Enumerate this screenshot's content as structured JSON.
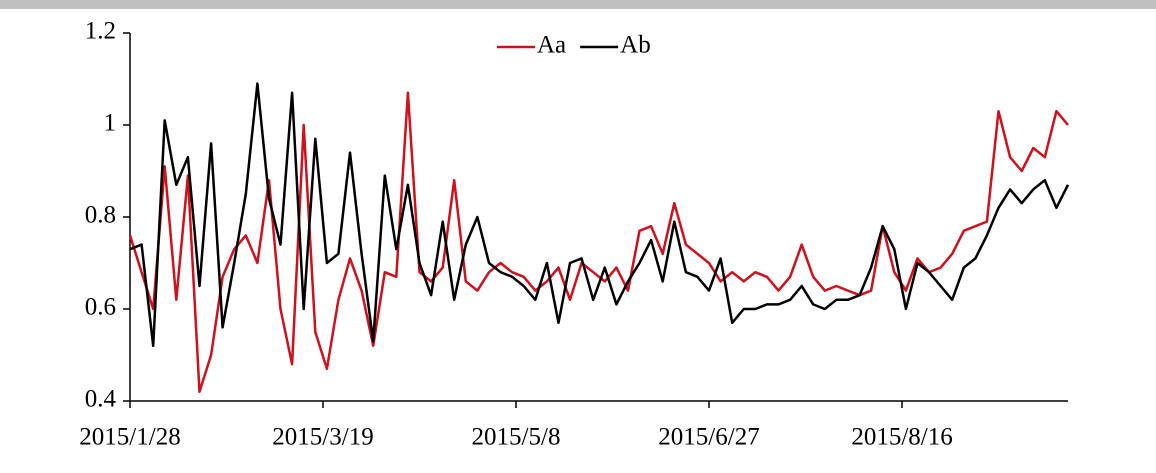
{
  "chart_data": {
    "type": "line",
    "x": [
      "2015/1/28",
      "2015/1/31",
      "2015/2/3",
      "2015/2/6",
      "2015/2/9",
      "2015/2/12",
      "2015/2/15",
      "2015/2/18",
      "2015/2/21",
      "2015/2/24",
      "2015/2/27",
      "2015/3/2",
      "2015/3/5",
      "2015/3/8",
      "2015/3/11",
      "2015/3/14",
      "2015/3/17",
      "2015/3/20",
      "2015/3/23",
      "2015/3/26",
      "2015/3/29",
      "2015/4/1",
      "2015/4/4",
      "2015/4/7",
      "2015/4/10",
      "2015/4/13",
      "2015/4/16",
      "2015/4/19",
      "2015/4/22",
      "2015/4/25",
      "2015/4/28",
      "2015/5/1",
      "2015/5/4",
      "2015/5/7",
      "2015/5/10",
      "2015/5/13",
      "2015/5/16",
      "2015/5/19",
      "2015/5/22",
      "2015/5/25",
      "2015/5/28",
      "2015/5/31",
      "2015/6/3",
      "2015/6/6",
      "2015/6/9",
      "2015/6/12",
      "2015/6/15",
      "2015/6/18",
      "2015/6/21",
      "2015/6/24",
      "2015/6/27",
      "2015/6/30",
      "2015/7/3",
      "2015/7/6",
      "2015/7/9",
      "2015/7/12",
      "2015/7/15",
      "2015/7/18",
      "2015/7/21",
      "2015/7/24",
      "2015/7/27",
      "2015/7/30",
      "2015/8/2",
      "2015/8/5",
      "2015/8/8",
      "2015/8/11",
      "2015/8/14",
      "2015/8/17",
      "2015/8/20",
      "2015/8/23",
      "2015/8/26",
      "2015/8/29",
      "2015/9/1",
      "2015/9/4",
      "2015/9/7",
      "2015/9/10",
      "2015/9/13",
      "2015/9/16",
      "2015/9/19",
      "2015/9/22",
      "2015/9/25",
      "2015/9/28"
    ],
    "series": [
      {
        "name": "Aa",
        "color": "#d0101b",
        "values": [
          0.76,
          0.68,
          0.6,
          0.91,
          0.62,
          0.89,
          0.42,
          0.5,
          0.67,
          0.73,
          0.76,
          0.7,
          0.88,
          0.6,
          0.48,
          1.0,
          0.55,
          0.47,
          0.62,
          0.71,
          0.64,
          0.52,
          0.68,
          0.67,
          1.07,
          0.68,
          0.66,
          0.69,
          0.88,
          0.66,
          0.64,
          0.68,
          0.7,
          0.68,
          0.67,
          0.64,
          0.66,
          0.69,
          0.62,
          0.7,
          0.68,
          0.66,
          0.69,
          0.64,
          0.77,
          0.78,
          0.72,
          0.83,
          0.74,
          0.72,
          0.7,
          0.66,
          0.68,
          0.66,
          0.68,
          0.67,
          0.64,
          0.67,
          0.74,
          0.67,
          0.64,
          0.65,
          0.64,
          0.63,
          0.64,
          0.78,
          0.68,
          0.64,
          0.71,
          0.68,
          0.69,
          0.72,
          0.77,
          0.78,
          0.79,
          1.03,
          0.93,
          0.9,
          0.95,
          0.93,
          1.03,
          1.0
        ]
      },
      {
        "name": "Ab",
        "color": "#000000",
        "values": [
          0.73,
          0.74,
          0.52,
          1.01,
          0.87,
          0.93,
          0.65,
          0.96,
          0.56,
          0.7,
          0.85,
          1.09,
          0.84,
          0.74,
          1.07,
          0.6,
          0.97,
          0.7,
          0.72,
          0.94,
          0.72,
          0.53,
          0.89,
          0.73,
          0.87,
          0.7,
          0.63,
          0.79,
          0.62,
          0.74,
          0.8,
          0.7,
          0.68,
          0.67,
          0.65,
          0.62,
          0.7,
          0.57,
          0.7,
          0.71,
          0.62,
          0.69,
          0.61,
          0.66,
          0.7,
          0.75,
          0.66,
          0.79,
          0.68,
          0.67,
          0.64,
          0.71,
          0.57,
          0.6,
          0.6,
          0.61,
          0.61,
          0.62,
          0.65,
          0.61,
          0.6,
          0.62,
          0.62,
          0.63,
          0.69,
          0.78,
          0.73,
          0.6,
          0.7,
          0.68,
          0.65,
          0.62,
          0.69,
          0.71,
          0.76,
          0.82,
          0.86,
          0.83,
          0.86,
          0.88,
          0.82,
          0.87
        ]
      }
    ],
    "xlim": [
      "2015/1/28",
      "2015/9/28"
    ],
    "xticks": [
      "2015/1/28",
      "2015/3/19",
      "2015/5/8",
      "2015/6/27",
      "2015/8/16"
    ],
    "ylim": [
      0.4,
      1.2
    ],
    "yticks": [
      0.4,
      0.6,
      0.8,
      1,
      1.2
    ],
    "legend": "top"
  }
}
